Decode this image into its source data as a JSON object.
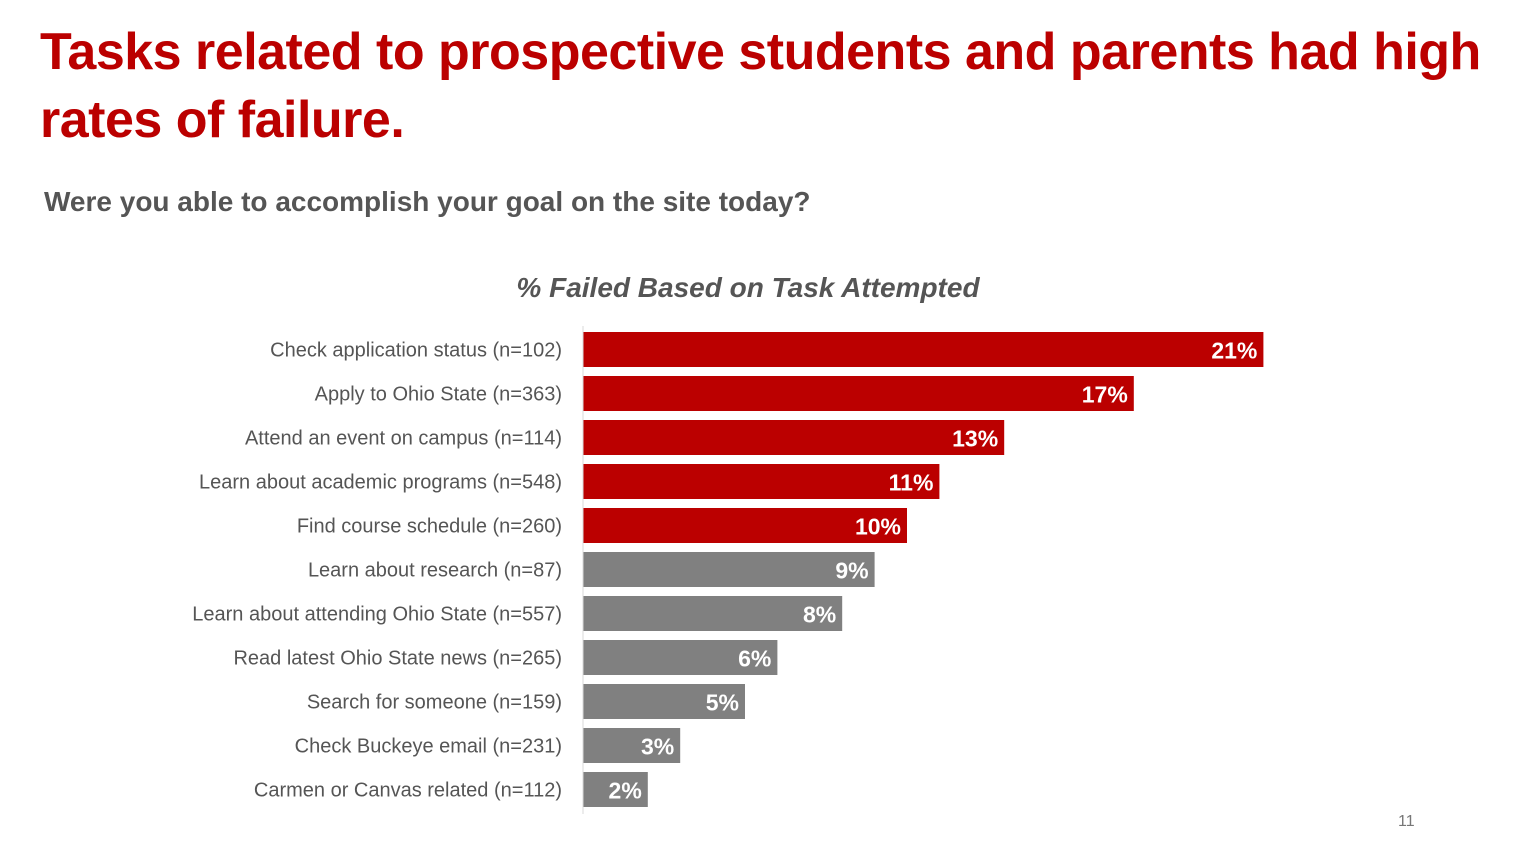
{
  "slide": {
    "title": "Tasks related to prospective students and parents had high rates of failure.",
    "subtitle": "Were you able to accomplish your goal on the site today?",
    "page_number": "11"
  },
  "chart_data": {
    "type": "bar",
    "orientation": "horizontal",
    "title": "% Failed Based on Task Attempted",
    "xlabel": "",
    "ylabel": "",
    "categories": [
      "Check application status (n=102)",
      "Apply to Ohio State (n=363)",
      "Attend an event on campus (n=114)",
      "Learn about academic programs (n=548)",
      "Find course schedule (n=260)",
      "Learn about research (n=87)",
      "Learn about attending Ohio State (n=557)",
      "Read latest Ohio State news (n=265)",
      "Search for someone (n=159)",
      "Check Buckeye email (n=231)",
      "Carmen or Canvas related (n=112)"
    ],
    "values": [
      21,
      17,
      13,
      11,
      10,
      9,
      8,
      6,
      5,
      3,
      2
    ],
    "value_labels": [
      "21%",
      "17%",
      "13%",
      "11%",
      "10%",
      "9%",
      "8%",
      "6%",
      "5%",
      "3%",
      "2%"
    ],
    "highlighted_count": 5,
    "xlim": [
      0,
      30
    ],
    "grid": false,
    "legend": "none",
    "colors": {
      "highlight": "#bb0000",
      "default": "#808080",
      "label_text": "#555555",
      "value_text": "#ffffff",
      "axis_line": "#d9d9d9"
    }
  }
}
